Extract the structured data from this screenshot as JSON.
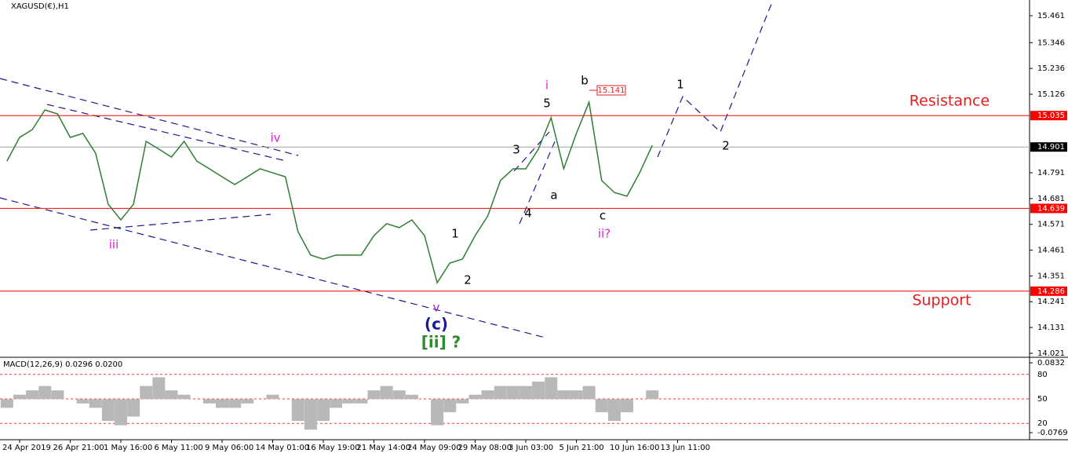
{
  "chart_data": {
    "type": "line",
    "title": "XAGUSD(€),H1",
    "categories": [
      null,
      "24 Apr 2019",
      null,
      null,
      null,
      "26 Apr 21:00",
      null,
      null,
      null,
      "1 May 16:00",
      null,
      null,
      null,
      "6 May 11:00",
      null,
      null,
      null,
      "9 May 06:00",
      null,
      null,
      null,
      "14 May 01:00",
      null,
      null,
      null,
      "16 May 19:00",
      null,
      null,
      null,
      "21 May 14:00",
      null,
      null,
      null,
      "24 May 09:00",
      null,
      null,
      null,
      "29 May 08:00",
      null,
      null,
      null,
      "3 Jun 03:00",
      null,
      null,
      null,
      "5 Jun 21:00",
      null,
      null,
      null,
      "10 Jun 16:00",
      null,
      null,
      null,
      "13 Jun 11:00"
    ],
    "series": [
      {
        "color": "#2e7d32",
        "values": [
          14.841,
          14.942,
          14.975,
          15.059,
          15.042,
          14.942,
          14.959,
          14.875,
          14.657,
          14.59,
          14.657,
          14.925,
          14.892,
          14.858,
          14.925,
          14.841,
          14.808,
          14.774,
          14.741,
          14.774,
          14.808,
          14.791,
          14.774,
          14.54,
          14.44,
          14.423,
          14.44,
          14.44,
          14.44,
          14.523,
          14.574,
          14.557,
          14.59,
          14.523,
          14.322,
          14.406,
          14.423,
          14.523,
          14.607,
          14.758,
          14.808,
          14.808,
          14.892,
          15.026,
          14.808,
          14.959,
          15.092,
          14.758,
          14.707,
          14.691,
          14.791,
          14.908,
          null,
          null
        ]
      }
    ],
    "ylim": [
      14.004,
      15.528
    ],
    "yticks": [
      14.021,
      14.131,
      14.241,
      14.351,
      14.461,
      14.571,
      14.681,
      14.791,
      15.126,
      15.236,
      15.346,
      15.461
    ],
    "levels": [
      {
        "value": 15.035,
        "color": "#ff0000"
      },
      {
        "value": 14.901,
        "color": "#a0a0a0"
      },
      {
        "value": 14.639,
        "color": "#ff0000"
      },
      {
        "value": 14.286,
        "color": "#ff0000"
      }
    ],
    "annotations": [
      {
        "text": "iv",
        "color": "#e020e0"
      },
      {
        "text": "iii",
        "color": "#e020e0"
      },
      {
        "text": "v",
        "color": "#a020c0"
      },
      {
        "text": "(c)",
        "color": "#1a1aa0"
      },
      {
        "text": "[ii] ?",
        "color": "#2e8b2e"
      },
      {
        "text": "1",
        "color": "#000000"
      },
      {
        "text": "2",
        "color": "#000000"
      },
      {
        "text": "3",
        "color": "#000000"
      },
      {
        "text": "4",
        "color": "#000000"
      },
      {
        "text": "5",
        "color": "#000000"
      },
      {
        "text": "i",
        "color": "#e020e0"
      },
      {
        "text": "a",
        "color": "#000000"
      },
      {
        "text": "b",
        "color": "#000000"
      },
      {
        "text": "c",
        "color": "#000000"
      },
      {
        "text": "ii?",
        "color": "#e020e0"
      },
      {
        "text": "1",
        "color": "#000000"
      },
      {
        "text": "2",
        "color": "#000000"
      },
      {
        "text": "Resistance",
        "color": "#e02020"
      },
      {
        "text": "Support",
        "color": "#e02020"
      },
      {
        "text": "15.141",
        "color": "#e02020"
      }
    ],
    "macd": {
      "label": "MACD(12,26,9) 0.0296 0.0200",
      "color": "#b8b8b8",
      "values": [
        -0.02,
        0.01,
        0.02,
        0.03,
        0.02,
        0.0,
        -0.01,
        -0.02,
        -0.05,
        -0.06,
        -0.04,
        0.03,
        0.05,
        0.02,
        0.01,
        0.0,
        -0.01,
        -0.02,
        -0.02,
        -0.01,
        0.0,
        0.01,
        0.0,
        -0.05,
        -0.07,
        -0.05,
        -0.02,
        -0.01,
        -0.01,
        0.02,
        0.03,
        0.02,
        0.01,
        0.0,
        -0.06,
        -0.03,
        -0.01,
        0.01,
        0.02,
        0.03,
        0.03,
        0.03,
        0.04,
        0.05,
        0.02,
        0.02,
        0.03,
        -0.03,
        -0.05,
        -0.03,
        0.0,
        0.02,
        null,
        null
      ],
      "ylim": [
        -0.0931,
        0.094
      ],
      "yticks": [
        -0.0769,
        0.0832
      ],
      "y2lim": [
        0,
        100
      ],
      "y2ticks": [
        20,
        50,
        80
      ]
    }
  }
}
